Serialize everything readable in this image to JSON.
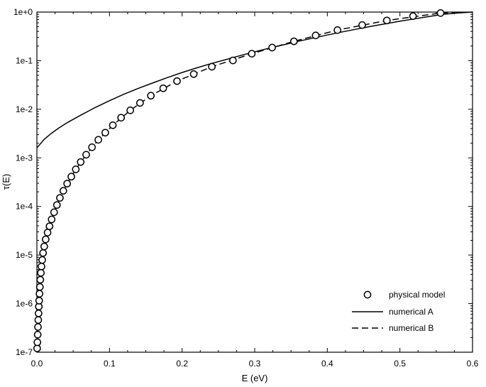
{
  "chart_data": {
    "type": "line",
    "xlabel": "E (eV)",
    "ylabel": "τ(E)",
    "xlim": [
      0.0,
      0.6
    ],
    "ylim": [
      1e-07,
      1
    ],
    "y_scale": "log",
    "x_ticks": [
      "0.0",
      "0.1",
      "0.2",
      "0.3",
      "0.4",
      "0.5",
      "0.6"
    ],
    "x_tick_values": [
      0.0,
      0.1,
      0.2,
      0.3,
      0.4,
      0.5,
      0.6
    ],
    "y_ticks": [
      "1e-7",
      "1e-6",
      "1e-5",
      "1e-4",
      "1e-3",
      "1e-2",
      "1e-1",
      "1e+0"
    ],
    "y_tick_values": [
      1e-07,
      1e-06,
      1e-05,
      0.0001,
      0.001,
      0.01,
      0.1,
      1
    ],
    "grid": false,
    "legend_position": "bottom-right",
    "series": [
      {
        "name": "physical model",
        "style": "circles",
        "color": "#000000",
        "points": [
          [
            0.0003,
            1.2e-07
          ],
          [
            0.0007,
            1.6e-07
          ],
          [
            0.0011,
            2.3e-07
          ],
          [
            0.0015,
            3.3e-07
          ],
          [
            0.0019,
            4.6e-07
          ],
          [
            0.0023,
            6.3e-07
          ],
          [
            0.0027,
            8.7e-07
          ],
          [
            0.0031,
            1.15e-06
          ],
          [
            0.0036,
            1.6e-06
          ],
          [
            0.0041,
            2.2e-06
          ],
          [
            0.0047,
            3.1e-06
          ],
          [
            0.0055,
            4.3e-06
          ],
          [
            0.0063,
            5.8e-06
          ],
          [
            0.0073,
            7.9e-06
          ],
          [
            0.0085,
            1.1e-05
          ],
          [
            0.0101,
            1.5e-05
          ],
          [
            0.0121,
            2.1e-05
          ],
          [
            0.0147,
            2.9e-05
          ],
          [
            0.0174,
            3.9e-05
          ],
          [
            0.0203,
            5.4e-05
          ],
          [
            0.0237,
            7.6e-05
          ],
          [
            0.0276,
            0.000107
          ],
          [
            0.0317,
            0.00015
          ],
          [
            0.0364,
            0.00021
          ],
          [
            0.0417,
            0.000295
          ],
          [
            0.0474,
            0.00041
          ],
          [
            0.0536,
            0.00058
          ],
          [
            0.0603,
            0.00082
          ],
          [
            0.0679,
            0.00116
          ],
          [
            0.0759,
            0.00165
          ],
          [
            0.0846,
            0.00235
          ],
          [
            0.0942,
            0.0033
          ],
          [
            0.1046,
            0.0047
          ],
          [
            0.116,
            0.0067
          ],
          [
            0.1286,
            0.0095
          ],
          [
            0.142,
            0.0135
          ],
          [
            0.157,
            0.019
          ],
          [
            0.174,
            0.027
          ],
          [
            0.193,
            0.038
          ],
          [
            0.216,
            0.053
          ],
          [
            0.241,
            0.075
          ],
          [
            0.27,
            0.101
          ],
          [
            0.296,
            0.139
          ],
          [
            0.324,
            0.186
          ],
          [
            0.354,
            0.25
          ],
          [
            0.384,
            0.331
          ],
          [
            0.414,
            0.426
          ],
          [
            0.448,
            0.541
          ],
          [
            0.482,
            0.672
          ],
          [
            0.518,
            0.826
          ],
          [
            0.556,
            0.955
          ]
        ]
      },
      {
        "name": "numerical A",
        "style": "solid",
        "color": "#000000",
        "points": [
          [
            0.0,
            0.0016
          ],
          [
            0.01,
            0.0024
          ],
          [
            0.02,
            0.0032
          ],
          [
            0.03,
            0.0041
          ],
          [
            0.04,
            0.0051
          ],
          [
            0.05,
            0.0062
          ],
          [
            0.06,
            0.0075
          ],
          [
            0.08,
            0.0108
          ],
          [
            0.1,
            0.015
          ],
          [
            0.12,
            0.0205
          ],
          [
            0.14,
            0.027
          ],
          [
            0.16,
            0.035
          ],
          [
            0.18,
            0.045
          ],
          [
            0.2,
            0.057
          ],
          [
            0.22,
            0.071
          ],
          [
            0.24,
            0.087
          ],
          [
            0.26,
            0.105
          ],
          [
            0.28,
            0.127
          ],
          [
            0.3,
            0.152
          ],
          [
            0.32,
            0.181
          ],
          [
            0.34,
            0.213
          ],
          [
            0.36,
            0.25
          ],
          [
            0.38,
            0.291
          ],
          [
            0.4,
            0.337
          ],
          [
            0.42,
            0.389
          ],
          [
            0.44,
            0.445
          ],
          [
            0.46,
            0.508
          ],
          [
            0.48,
            0.575
          ],
          [
            0.5,
            0.648
          ],
          [
            0.52,
            0.725
          ],
          [
            0.54,
            0.81
          ],
          [
            0.56,
            0.9
          ],
          [
            0.58,
            0.96
          ],
          [
            0.6,
            1.0
          ]
        ]
      },
      {
        "name": "numerical B",
        "style": "dashed",
        "color": "#000000",
        "points": [
          [
            0.0003,
            1.2e-07
          ],
          [
            0.0011,
            2.3e-07
          ],
          [
            0.0019,
            4.6e-07
          ],
          [
            0.0027,
            8.7e-07
          ],
          [
            0.0036,
            1.6e-06
          ],
          [
            0.0047,
            3.1e-06
          ],
          [
            0.0063,
            5.8e-06
          ],
          [
            0.0085,
            1.1e-05
          ],
          [
            0.0121,
            2.1e-05
          ],
          [
            0.0174,
            3.9e-05
          ],
          [
            0.0237,
            7.6e-05
          ],
          [
            0.0317,
            0.00015
          ],
          [
            0.0417,
            0.000295
          ],
          [
            0.0536,
            0.00058
          ],
          [
            0.0679,
            0.00116
          ],
          [
            0.0846,
            0.00235
          ],
          [
            0.1046,
            0.0047
          ],
          [
            0.1286,
            0.0095
          ],
          [
            0.157,
            0.019
          ],
          [
            0.193,
            0.038
          ],
          [
            0.241,
            0.075
          ],
          [
            0.296,
            0.139
          ],
          [
            0.354,
            0.25
          ],
          [
            0.414,
            0.426
          ],
          [
            0.482,
            0.672
          ],
          [
            0.556,
            0.955
          ],
          [
            0.6,
            1.0
          ]
        ]
      }
    ]
  }
}
